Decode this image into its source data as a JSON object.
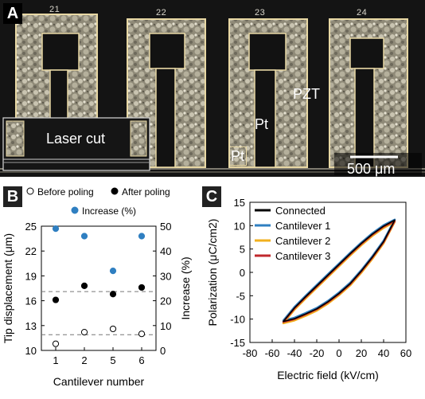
{
  "panel_a": {
    "letter": "A",
    "cantilever_labels": [
      "21",
      "22",
      "23",
      "24"
    ],
    "labels": {
      "laser_cut": "Laser cut",
      "pzt": "PZT",
      "pt_top": "Pt",
      "pt_bottom": "Pt",
      "scale": "500 μm"
    }
  },
  "chart_data": [
    {
      "panel": "B",
      "type": "scatter",
      "legend": [
        {
          "name": "Before poling",
          "marker": "open-circle",
          "color": "#000000"
        },
        {
          "name": "After poling",
          "marker": "filled-circle",
          "color": "#000000"
        },
        {
          "name": "Increase (%)",
          "marker": "filled-circle",
          "color": "#2f7fc1"
        }
      ],
      "categories": [
        "1",
        "2",
        "5",
        "6"
      ],
      "series": [
        {
          "name": "Before poling",
          "axis": "left",
          "values": [
            10.8,
            12.2,
            12.6,
            12.0
          ]
        },
        {
          "name": "After poling",
          "axis": "left",
          "values": [
            16.1,
            17.8,
            16.8,
            17.6
          ]
        },
        {
          "name": "Increase (%)",
          "axis": "right",
          "values": [
            49,
            46,
            32,
            46
          ]
        }
      ],
      "reference_lines_left": [
        17.1,
        11.9
      ],
      "xlabel": "Cantilever number",
      "ylabel_left": "Tip displacement (μm)",
      "ylabel_right": "Increase (%)",
      "ylim_left": [
        10,
        25
      ],
      "yticks_left": [
        "10",
        "13",
        "16",
        "19",
        "22",
        "25"
      ],
      "ylim_right": [
        0,
        50
      ],
      "yticks_right": [
        "0",
        "10",
        "20",
        "30",
        "40",
        "50"
      ]
    },
    {
      "panel": "C",
      "type": "line",
      "legend_position": "top-left",
      "series": [
        {
          "name": "Connected",
          "color": "#000000",
          "x": [
            -50,
            -40,
            -30,
            -20,
            -10,
            0,
            10,
            20,
            30,
            40,
            50
          ],
          "y_upper": [
            -10.5,
            -7.6,
            -5.2,
            -2.9,
            -0.6,
            1.7,
            4.0,
            6.2,
            8.2,
            9.9,
            11.2
          ],
          "y_lower": [
            -10.5,
            -9.9,
            -8.9,
            -7.8,
            -6.3,
            -4.5,
            -2.4,
            0.3,
            3.3,
            6.6,
            11.2
          ]
        },
        {
          "name": "Cantilever 1",
          "color": "#2f7fc1",
          "x": [
            -50,
            -40,
            -30,
            -20,
            -10,
            0,
            10,
            20,
            30,
            40,
            50
          ],
          "y_upper": [
            -10.3,
            -7.4,
            -5.0,
            -2.7,
            -0.4,
            1.9,
            4.2,
            6.4,
            8.4,
            10.1,
            11.3
          ],
          "y_lower": [
            -10.3,
            -9.7,
            -8.7,
            -7.6,
            -6.1,
            -4.3,
            -2.2,
            0.5,
            3.5,
            6.8,
            11.3
          ]
        },
        {
          "name": "Cantilever 2",
          "color": "#f2b01e",
          "x": [
            -50,
            -40,
            -30,
            -20,
            -10,
            0,
            10,
            20,
            30,
            40,
            50
          ],
          "y_upper": [
            -10.9,
            -8.0,
            -5.6,
            -3.3,
            -1.0,
            1.3,
            3.6,
            5.8,
            7.8,
            9.5,
            10.8
          ],
          "y_lower": [
            -10.9,
            -10.3,
            -9.3,
            -8.2,
            -6.7,
            -4.9,
            -2.8,
            -0.1,
            2.9,
            6.2,
            10.8
          ]
        },
        {
          "name": "Cantilever 3",
          "color": "#c0282d",
          "x": [
            -50,
            -40,
            -30,
            -20,
            -10,
            0,
            10,
            20,
            30,
            40,
            50
          ],
          "y_upper": [
            -10.6,
            -7.7,
            -5.3,
            -3.0,
            -0.7,
            1.6,
            3.9,
            6.1,
            8.1,
            9.8,
            11.0
          ],
          "y_lower": [
            -10.6,
            -10.0,
            -9.0,
            -7.9,
            -6.4,
            -4.6,
            -2.5,
            0.2,
            3.2,
            6.5,
            11.0
          ]
        }
      ],
      "xlabel": "Electric field (kV/cm)",
      "ylabel": "Polarization (μC/cm2)",
      "xlim": [
        -80,
        60
      ],
      "xticks": [
        "-80",
        "-60",
        "-40",
        "-20",
        "0",
        "20",
        "40",
        "60"
      ],
      "ylim": [
        -15,
        15
      ],
      "yticks": [
        "-15",
        "-10",
        "-5",
        "0",
        "5",
        "10",
        "15"
      ]
    }
  ]
}
